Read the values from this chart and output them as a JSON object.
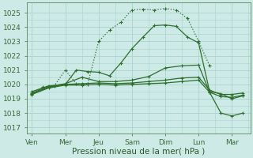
{
  "xlabel": "Pression niveau de la mer( hPa )",
  "xtick_labels": [
    "Ven",
    "Mer",
    "Jeu",
    "Sam",
    "Dim",
    "Lun",
    "Mar"
  ],
  "xtick_positions": [
    0,
    1,
    2,
    3,
    4,
    5,
    6
  ],
  "ylim": [
    1016.6,
    1025.7
  ],
  "yticks": [
    1017,
    1018,
    1019,
    1020,
    1021,
    1022,
    1023,
    1024,
    1025
  ],
  "bg_color": "#ceeae6",
  "grid_color": "#a8d4ce",
  "line_color": "#2d6e2d",
  "line1_x": [
    0.0,
    0.33,
    0.67,
    1.0,
    1.33,
    1.67,
    2.0,
    2.33,
    2.67,
    3.0,
    3.33,
    3.67,
    4.0,
    4.33,
    4.67,
    5.0,
    5.33
  ],
  "line1_y": [
    1019.35,
    1019.8,
    1019.9,
    1021.0,
    1020.05,
    1020.0,
    1023.0,
    1023.8,
    1024.35,
    1025.2,
    1025.25,
    1025.2,
    1025.3,
    1025.2,
    1024.6,
    1023.0,
    1021.3
  ],
  "line2_x": [
    0.0,
    0.5,
    1.0,
    1.33,
    1.67,
    2.0,
    2.33,
    2.67,
    3.0,
    3.33,
    3.67,
    4.0,
    4.33,
    4.67,
    5.0,
    5.33,
    5.67,
    6.0,
    6.33
  ],
  "line2_y": [
    1019.5,
    1019.9,
    1020.0,
    1021.0,
    1020.9,
    1020.85,
    1020.6,
    1021.5,
    1022.5,
    1023.3,
    1024.1,
    1024.15,
    1024.05,
    1023.3,
    1022.9,
    1019.5,
    1019.35,
    1019.0,
    1019.2
  ],
  "line3_x": [
    0.0,
    0.5,
    1.0,
    1.5,
    2.0,
    2.5,
    3.0,
    3.5,
    4.0,
    4.5,
    5.0,
    5.33,
    5.67,
    6.0,
    6.33
  ],
  "line3_y": [
    1019.4,
    1019.85,
    1020.05,
    1020.5,
    1020.2,
    1020.2,
    1020.3,
    1020.55,
    1021.15,
    1021.3,
    1021.35,
    1019.45,
    1018.0,
    1017.8,
    1018.0
  ],
  "line4_x": [
    0.0,
    0.5,
    1.0,
    1.5,
    2.0,
    2.5,
    3.0,
    3.5,
    4.0,
    4.5,
    5.0,
    5.33,
    5.67,
    6.0,
    6.33
  ],
  "line4_y": [
    1019.35,
    1019.8,
    1020.0,
    1020.05,
    1020.1,
    1020.05,
    1020.1,
    1020.2,
    1020.3,
    1020.45,
    1020.5,
    1019.6,
    1019.3,
    1019.3,
    1019.4
  ],
  "line5_x": [
    0.0,
    0.5,
    1.0,
    1.5,
    2.0,
    2.5,
    3.0,
    3.5,
    4.0,
    4.5,
    5.0,
    5.33,
    5.67,
    6.0,
    6.33
  ],
  "line5_y": [
    1019.3,
    1019.75,
    1019.95,
    1019.95,
    1020.0,
    1019.95,
    1020.0,
    1020.05,
    1020.1,
    1020.2,
    1020.3,
    1019.45,
    1019.15,
    1019.1,
    1019.25
  ]
}
